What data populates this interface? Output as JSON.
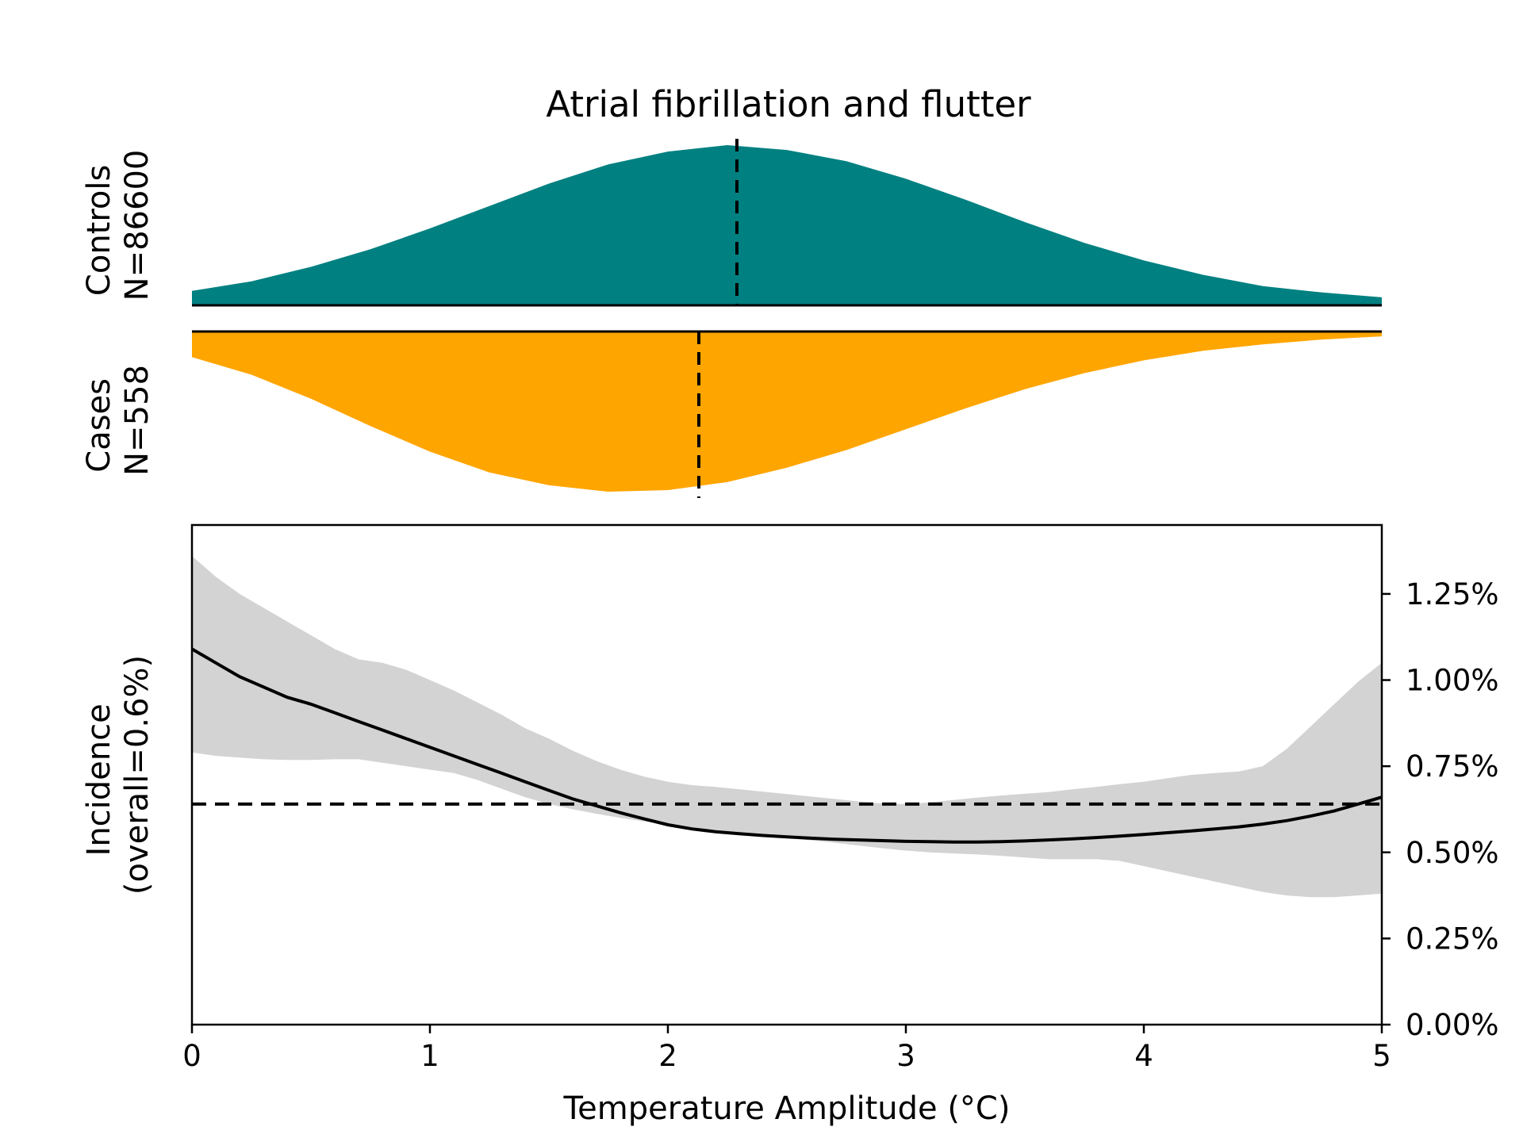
{
  "chart_data": {
    "type": "area",
    "title": "Atrial fibrillation and flutter",
    "xlabel": "Temperature Amplitude (°C)",
    "xlim": [
      0,
      5
    ],
    "x_ticks": [
      "0",
      "1",
      "2",
      "3",
      "4",
      "5"
    ],
    "panels": {
      "controls": {
        "label_line1": "Controls",
        "label_line2": "N=86600",
        "color": "#008080",
        "median": 2.29,
        "x": [
          0.0,
          0.25,
          0.5,
          0.75,
          1.0,
          1.25,
          1.5,
          1.75,
          2.0,
          2.25,
          2.5,
          2.75,
          3.0,
          3.25,
          3.5,
          3.75,
          4.0,
          4.25,
          4.5,
          4.75,
          5.0
        ],
        "density": [
          0.09,
          0.15,
          0.24,
          0.35,
          0.48,
          0.62,
          0.76,
          0.88,
          0.96,
          1.0,
          0.97,
          0.9,
          0.79,
          0.66,
          0.52,
          0.39,
          0.28,
          0.19,
          0.12,
          0.08,
          0.05
        ]
      },
      "cases": {
        "label_line1": "Cases",
        "label_line2": "N=558",
        "color": "#FFA500",
        "median": 2.13,
        "x": [
          0.0,
          0.25,
          0.5,
          0.75,
          1.0,
          1.25,
          1.5,
          1.75,
          2.0,
          2.25,
          2.5,
          2.75,
          3.0,
          3.25,
          3.5,
          3.75,
          4.0,
          4.25,
          4.5,
          4.75,
          5.0
        ],
        "density": [
          0.16,
          0.27,
          0.42,
          0.59,
          0.75,
          0.88,
          0.96,
          1.0,
          0.99,
          0.94,
          0.85,
          0.74,
          0.61,
          0.48,
          0.36,
          0.26,
          0.18,
          0.12,
          0.08,
          0.05,
          0.03
        ]
      }
    },
    "incidence": {
      "ylabel_line1": "Incidence",
      "ylabel_line2": "(overall=0.6%)",
      "ylim": [
        0,
        1.45
      ],
      "y_ticks": [
        0,
        0.25,
        0.5,
        0.75,
        1.0,
        1.25
      ],
      "y_tick_labels": [
        "0.00%",
        "0.25%",
        "0.50%",
        "0.75%",
        "1.00%",
        "1.25%"
      ],
      "overall": 0.64,
      "band_color": "#d3d3d3",
      "x": [
        0.0,
        0.1,
        0.2,
        0.3,
        0.4,
        0.5,
        0.6,
        0.7,
        0.8,
        0.9,
        1.0,
        1.1,
        1.2,
        1.3,
        1.4,
        1.5,
        1.6,
        1.7,
        1.8,
        1.9,
        2.0,
        2.1,
        2.2,
        2.3,
        2.4,
        2.5,
        2.6,
        2.7,
        2.8,
        2.9,
        3.0,
        3.1,
        3.2,
        3.3,
        3.4,
        3.5,
        3.6,
        3.7,
        3.8,
        3.9,
        4.0,
        4.1,
        4.2,
        4.3,
        4.4,
        4.5,
        4.6,
        4.7,
        4.8,
        4.9,
        5.0
      ],
      "estimate": [
        1.09,
        1.05,
        1.01,
        0.98,
        0.95,
        0.93,
        0.905,
        0.88,
        0.855,
        0.83,
        0.805,
        0.78,
        0.755,
        0.73,
        0.705,
        0.68,
        0.655,
        0.635,
        0.615,
        0.597,
        0.58,
        0.568,
        0.56,
        0.554,
        0.549,
        0.545,
        0.541,
        0.538,
        0.536,
        0.534,
        0.532,
        0.531,
        0.53,
        0.53,
        0.531,
        0.533,
        0.536,
        0.539,
        0.543,
        0.547,
        0.552,
        0.557,
        0.562,
        0.568,
        0.574,
        0.582,
        0.592,
        0.605,
        0.62,
        0.64,
        0.66
      ],
      "upper": [
        1.36,
        1.3,
        1.25,
        1.21,
        1.17,
        1.13,
        1.09,
        1.06,
        1.05,
        1.03,
        1.0,
        0.97,
        0.935,
        0.9,
        0.86,
        0.83,
        0.795,
        0.765,
        0.74,
        0.72,
        0.705,
        0.695,
        0.69,
        0.683,
        0.676,
        0.669,
        0.662,
        0.655,
        0.648,
        0.642,
        0.64,
        0.645,
        0.652,
        0.659,
        0.665,
        0.67,
        0.675,
        0.683,
        0.69,
        0.698,
        0.705,
        0.715,
        0.725,
        0.73,
        0.735,
        0.75,
        0.8,
        0.865,
        0.93,
        0.995,
        1.05
      ],
      "lower": [
        0.79,
        0.78,
        0.775,
        0.77,
        0.768,
        0.768,
        0.77,
        0.77,
        0.76,
        0.75,
        0.74,
        0.73,
        0.71,
        0.685,
        0.66,
        0.64,
        0.625,
        0.612,
        0.6,
        0.59,
        0.58,
        0.57,
        0.565,
        0.558,
        0.55,
        0.542,
        0.535,
        0.528,
        0.52,
        0.512,
        0.505,
        0.5,
        0.497,
        0.494,
        0.49,
        0.485,
        0.48,
        0.48,
        0.48,
        0.475,
        0.46,
        0.445,
        0.43,
        0.415,
        0.4,
        0.385,
        0.375,
        0.37,
        0.37,
        0.375,
        0.38
      ]
    }
  }
}
